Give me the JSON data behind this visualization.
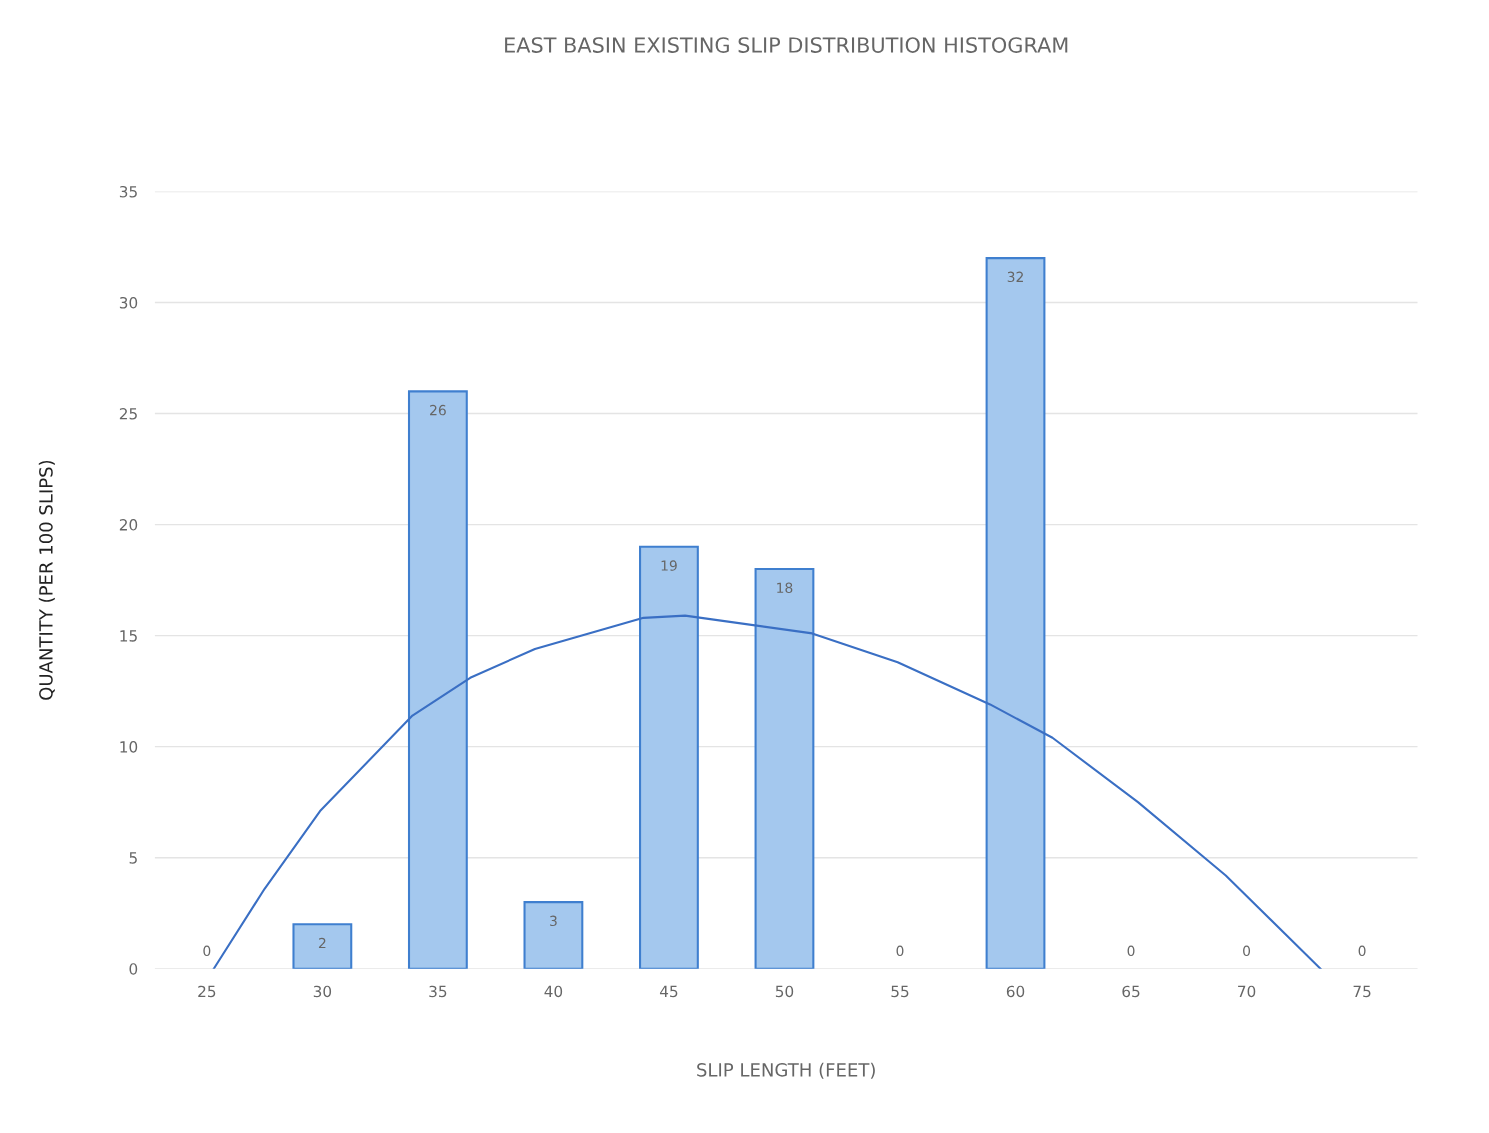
{
  "chart_data": {
    "type": "bar",
    "title": "EAST BASIN EXISTING SLIP DISTRIBUTION HISTOGRAM",
    "xlabel": "SLIP LENGTH (FEET)",
    "ylabel": "QUANTITY (PER 100 SLIPS)",
    "x": [
      25,
      30,
      35,
      40,
      45,
      50,
      55,
      60,
      65,
      70,
      75
    ],
    "series": [
      {
        "color": "#a4c8ee",
        "values": [
          0,
          2,
          26,
          3,
          19,
          18,
          0,
          32,
          0,
          0,
          0
        ],
        "value_labels": [
          "0",
          "2",
          "26",
          "3",
          "19",
          "18",
          "0",
          "32",
          "0",
          "0",
          "0"
        ]
      },
      {
        "type": "line",
        "color": "#3a6fc4",
        "x": [
          25.3,
          27.5,
          29.9,
          33.9,
          36.4,
          39.2,
          43.9,
          45.7,
          51.2,
          54.9,
          58.9,
          61.6,
          65.3,
          69.1,
          73.2
        ],
        "values": [
          0,
          3.6,
          7.1,
          11.4,
          13.1,
          14.4,
          15.8,
          15.9,
          15.1,
          13.8,
          11.9,
          10.4,
          7.5,
          4.2,
          0
        ]
      }
    ],
    "xlim": [
      22.75,
      77.4
    ],
    "xticks": [
      25,
      30,
      35,
      40,
      45,
      50,
      55,
      60,
      65,
      70,
      75
    ],
    "ylim": [
      0,
      35
    ],
    "yticks": [
      0,
      5,
      10,
      15,
      20,
      25,
      30,
      35
    ],
    "grid": "y",
    "legend": false
  }
}
